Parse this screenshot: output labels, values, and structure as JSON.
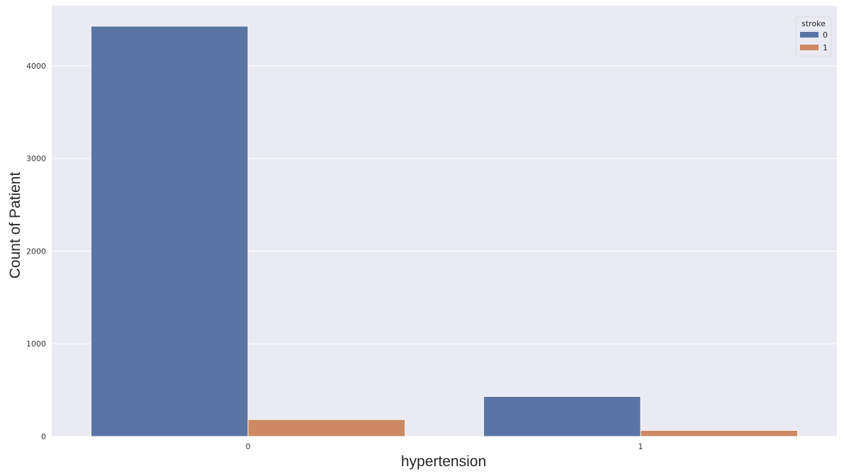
{
  "chart_data": {
    "type": "bar",
    "categories": [
      "0",
      "1"
    ],
    "xlabel": "hypertension",
    "ylabel": "Count of Patient",
    "ylim": [
      0,
      4650
    ],
    "yticks": [
      0,
      1000,
      2000,
      3000,
      4000
    ],
    "grid": true,
    "legend": {
      "title": "stroke",
      "placement": "top-right"
    },
    "series": [
      {
        "name": "0",
        "values": [
          4429,
          432
        ],
        "color": "#5975a4"
      },
      {
        "name": "1",
        "values": [
          183,
          66
        ],
        "color": "#cc8963"
      }
    ],
    "colors": {
      "plot_background": "#eaeaf2",
      "grid": "#ffffff"
    }
  }
}
